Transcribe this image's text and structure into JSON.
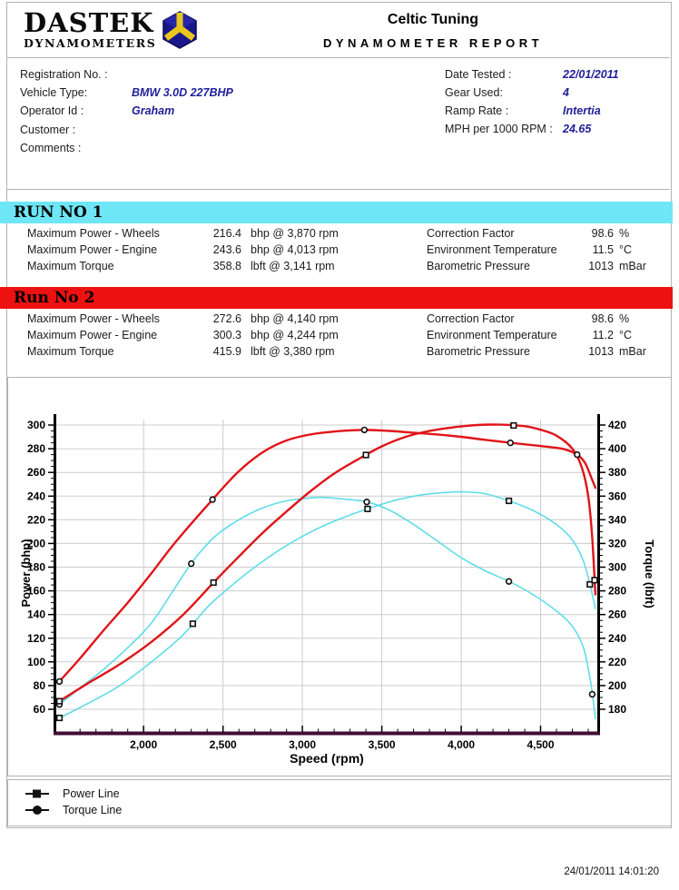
{
  "header": {
    "logo_line1": "DASTEK",
    "logo_line2": "DYNAMOMETERS",
    "title": "Celtic Tuning",
    "subtitle": "DYNAMOMETER REPORT"
  },
  "info": {
    "left": [
      {
        "label": "Registration No. :",
        "value": ""
      },
      {
        "label": "Vehicle Type:",
        "value": "BMW 3.0D 227BHP"
      },
      {
        "label": "Operator Id :",
        "value": "Graham"
      },
      {
        "label": "Customer :",
        "value": ""
      },
      {
        "label": "Comments :",
        "value": ""
      }
    ],
    "right": [
      {
        "label": "Date Tested :",
        "value": "22/01/2011"
      },
      {
        "label": "Gear Used:",
        "value": "4"
      },
      {
        "label": "Ramp Rate :",
        "value": "Intertia"
      },
      {
        "label": "MPH per 1000 RPM :",
        "value": "24.65"
      }
    ]
  },
  "runs": [
    {
      "title": "RUN NO 1",
      "color": "#6ee6f6",
      "rows": [
        {
          "label": "Maximum Power - Wheels",
          "num": "216.4",
          "unit": "bhp @ 3,870 rpm"
        },
        {
          "label": "Maximum Power - Engine",
          "num": "243.6",
          "unit": "bhp @ 4,013 rpm"
        },
        {
          "label": "Maximum Torque",
          "num": "358.8",
          "unit": "lbft @ 3,141 rpm"
        }
      ],
      "env": [
        {
          "label": "Correction Factor",
          "num": "98.6",
          "unit": "%"
        },
        {
          "label": "Environment Temperature",
          "num": "11.5",
          "unit": "°C"
        },
        {
          "label": "Barometric Pressure",
          "num": "1013",
          "unit": "mBar"
        }
      ]
    },
    {
      "title": "Run No 2",
      "color": "#ee1111",
      "rows": [
        {
          "label": "Maximum Power - Wheels",
          "num": "272.6",
          "unit": "bhp @ 4,140 rpm"
        },
        {
          "label": "Maximum Power - Engine",
          "num": "300.3",
          "unit": "bhp @ 4,244 rpm"
        },
        {
          "label": "Maximum Torque",
          "num": "415.9",
          "unit": "lbft @ 3,380 rpm"
        }
      ],
      "env": [
        {
          "label": "Correction Factor",
          "num": "98.6",
          "unit": "%"
        },
        {
          "label": "Environment Temperature",
          "num": "11.2",
          "unit": "°C"
        },
        {
          "label": "Barometric Pressure",
          "num": "1013",
          "unit": "mBar"
        }
      ]
    }
  ],
  "legend": {
    "items": [
      {
        "marker": "square",
        "label": "Power Line"
      },
      {
        "marker": "circle",
        "label": "Torque Line"
      }
    ]
  },
  "footer": {
    "timestamp": "24/01/2011 14:01:20"
  },
  "chart_data": {
    "type": "line",
    "xlabel": "Speed (rpm)",
    "ylabel_left": "Power (bhp)",
    "ylabel_right": "Torque (lbft)",
    "x_range": [
      1450,
      4857
    ],
    "x_ticks": [
      {
        "v": 2000,
        "label": "2,000"
      },
      {
        "v": 2500,
        "label": "2,500"
      },
      {
        "v": 3000,
        "label": "3,000"
      },
      {
        "v": 3500,
        "label": "3,500"
      },
      {
        "v": 4000,
        "label": "4,000"
      },
      {
        "v": 4500,
        "label": "4,500"
      }
    ],
    "x_minor_step": 100,
    "y_left_ticks": [
      60,
      80,
      100,
      120,
      140,
      160,
      180,
      200,
      220,
      240,
      260,
      280,
      300
    ],
    "y_right_ticks": [
      180,
      200,
      220,
      240,
      260,
      280,
      300,
      320,
      340,
      360,
      380,
      400,
      420
    ],
    "y_minor_step": 5,
    "grid_on": true,
    "grid_color": "#cccccc",
    "axis_color": "#000000",
    "baseline_color": "#3f0d35",
    "legend_position": "below",
    "series": [
      {
        "name": "run1-power",
        "run": "Run 1",
        "quantity": "Power (bhp)",
        "axis": "left",
        "marker": "square",
        "color": "#5fdde9",
        "width": 1.6,
        "points": [
          [
            1460,
            52
          ],
          [
            1650,
            65
          ],
          [
            1850,
            80
          ],
          [
            2050,
            100
          ],
          [
            2250,
            123
          ],
          [
            2400,
            146
          ],
          [
            2550,
            164
          ],
          [
            2700,
            180
          ],
          [
            2850,
            194
          ],
          [
            3000,
            206
          ],
          [
            3150,
            216
          ],
          [
            3300,
            224
          ],
          [
            3450,
            231
          ],
          [
            3600,
            237
          ],
          [
            3750,
            241
          ],
          [
            3900,
            243
          ],
          [
            4013,
            243.6
          ],
          [
            4150,
            242
          ],
          [
            4300,
            236
          ],
          [
            4450,
            228
          ],
          [
            4600,
            216
          ],
          [
            4700,
            203
          ],
          [
            4770,
            185
          ],
          [
            4815,
            163
          ],
          [
            4845,
            145
          ]
        ],
        "marker_rpm": [
          1470,
          2310,
          3410,
          4300,
          4810
        ]
      },
      {
        "name": "run1-torque",
        "run": "Run 1",
        "quantity": "Torque (lbft)",
        "axis": "right",
        "marker": "circle",
        "color": "#5fdde9",
        "width": 1.6,
        "points": [
          [
            1460,
            183
          ],
          [
            1600,
            198
          ],
          [
            1750,
            214
          ],
          [
            1900,
            232
          ],
          [
            2050,
            253
          ],
          [
            2200,
            283
          ],
          [
            2310,
            305
          ],
          [
            2450,
            326
          ],
          [
            2600,
            340
          ],
          [
            2750,
            350
          ],
          [
            2900,
            356
          ],
          [
            3050,
            358.4
          ],
          [
            3141,
            358.8
          ],
          [
            3300,
            357
          ],
          [
            3410,
            355
          ],
          [
            3550,
            348
          ],
          [
            3700,
            336
          ],
          [
            3850,
            322
          ],
          [
            4000,
            308
          ],
          [
            4150,
            297
          ],
          [
            4300,
            288
          ],
          [
            4450,
            277
          ],
          [
            4600,
            263
          ],
          [
            4700,
            250
          ],
          [
            4770,
            232
          ],
          [
            4815,
            203
          ],
          [
            4845,
            172
          ]
        ],
        "marker_rpm": [
          1470,
          2300,
          3405,
          4300,
          4825
        ]
      },
      {
        "name": "run2-power",
        "run": "Run 2",
        "quantity": "Power (bhp)",
        "axis": "left",
        "marker": "square",
        "color": "#e01418",
        "width": 2.4,
        "points": [
          [
            1460,
            66
          ],
          [
            1650,
            82
          ],
          [
            1850,
            98
          ],
          [
            2050,
            117
          ],
          [
            2250,
            140
          ],
          [
            2440,
            167
          ],
          [
            2600,
            189
          ],
          [
            2750,
            209
          ],
          [
            2900,
            227
          ],
          [
            3050,
            244
          ],
          [
            3200,
            259
          ],
          [
            3350,
            271
          ],
          [
            3500,
            282
          ],
          [
            3650,
            290
          ],
          [
            3800,
            295
          ],
          [
            3950,
            298
          ],
          [
            4100,
            300
          ],
          [
            4244,
            300.3
          ],
          [
            4400,
            299
          ],
          [
            4500,
            296
          ],
          [
            4600,
            291
          ],
          [
            4700,
            280
          ],
          [
            4760,
            264
          ],
          [
            4800,
            240
          ],
          [
            4825,
            205
          ],
          [
            4845,
            157
          ]
        ],
        "marker_rpm": [
          1470,
          2440,
          3400,
          4330,
          4840
        ]
      },
      {
        "name": "run2-torque",
        "run": "Run 2",
        "quantity": "Torque (lbft)",
        "axis": "right",
        "marker": "circle",
        "color": "#e01418",
        "width": 2.4,
        "points": [
          [
            1460,
            202
          ],
          [
            1600,
            223
          ],
          [
            1750,
            247
          ],
          [
            1900,
            270
          ],
          [
            2050,
            295
          ],
          [
            2200,
            321
          ],
          [
            2440,
            358
          ],
          [
            2600,
            381
          ],
          [
            2750,
            397
          ],
          [
            2900,
            407
          ],
          [
            3050,
            412
          ],
          [
            3200,
            414.5
          ],
          [
            3380,
            415.9
          ],
          [
            3550,
            415
          ],
          [
            3700,
            413.5
          ],
          [
            3850,
            412
          ],
          [
            4000,
            410
          ],
          [
            4150,
            407.5
          ],
          [
            4310,
            405
          ],
          [
            4450,
            403
          ],
          [
            4550,
            401.5
          ],
          [
            4650,
            399.5
          ],
          [
            4730,
            395
          ],
          [
            4780,
            388
          ],
          [
            4815,
            377
          ],
          [
            4845,
            367
          ]
        ],
        "marker_rpm": [
          1470,
          2434,
          3390,
          4310,
          4730
        ]
      }
    ]
  }
}
